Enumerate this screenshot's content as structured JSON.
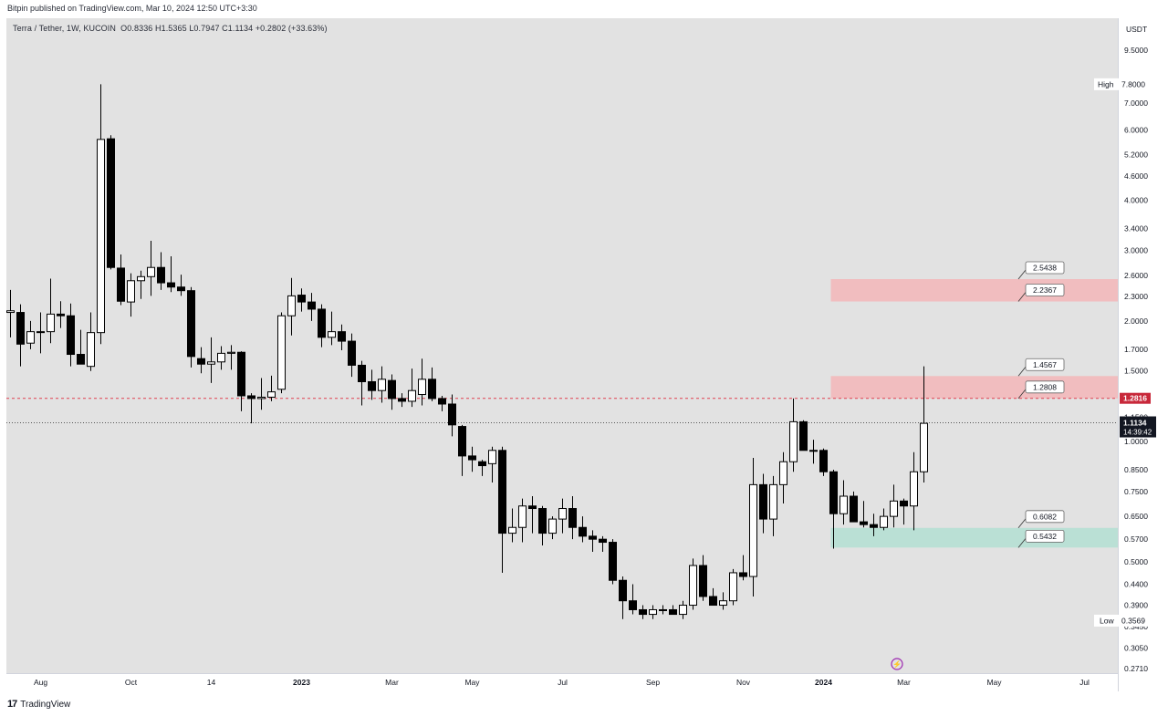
{
  "header": {
    "published": "Bitpin published on TradingView.com, Mar 10, 2024 12:50 UTC+3:30",
    "symbol": "Terra / Tether, 1W, KUCOIN",
    "ohlc": "O0.8336  H1.5365  L0.7947  C1.1134  +0.2802 (+33.63%)"
  },
  "footer": {
    "brand": "TradingView"
  },
  "chart_data": {
    "type": "candlestick",
    "currency": "USDT",
    "y_scale": "log",
    "ylim": [
      0.25,
      11
    ],
    "price_ticks": [
      "9.5000",
      "7.0000",
      "6.0000",
      "5.2000",
      "4.6000",
      "4.0000",
      "3.4000",
      "3.0000",
      "2.6000",
      "2.3000",
      "2.0000",
      "1.7000",
      "1.5000",
      "1.1500",
      "1.0000",
      "0.8500",
      "0.7500",
      "0.6500",
      "0.5700",
      "0.5000",
      "0.4400",
      "0.3900",
      "0.3450",
      "0.3050",
      "0.2710"
    ],
    "time_labels": [
      {
        "label": "Aug",
        "week": 3
      },
      {
        "label": "Oct",
        "week": 12
      },
      {
        "label": "14",
        "week": 20
      },
      {
        "label": "2023",
        "week": 29
      },
      {
        "label": "Mar",
        "week": 38
      },
      {
        "label": "May",
        "week": 46
      },
      {
        "label": "Jul",
        "week": 55
      },
      {
        "label": "Sep",
        "week": 64
      },
      {
        "label": "Nov",
        "week": 73
      },
      {
        "label": "2024",
        "week": 81
      },
      {
        "label": "Mar",
        "week": 89
      },
      {
        "label": "May",
        "week": 98
      },
      {
        "label": "Jul",
        "week": 107
      }
    ],
    "high": {
      "label": "High",
      "value": "7.8000"
    },
    "low": {
      "label": "Low",
      "value": "0.3569"
    },
    "current_price": {
      "value": "1.1134",
      "countdown": "14:39:42"
    },
    "marked_level": {
      "value": "1.2816"
    },
    "zones": [
      {
        "type": "resistance",
        "color": "#f3b6b9",
        "from_week": 82,
        "top": 2.5438,
        "bottom": 2.2367,
        "labels": [
          "2.5438",
          "2.2367"
        ]
      },
      {
        "type": "resistance",
        "color": "#f3b6b9",
        "from_week": 82,
        "top": 1.4567,
        "bottom": 1.2808,
        "labels": [
          "1.4567",
          "1.2808"
        ]
      },
      {
        "type": "support",
        "color": "#b3dfd2",
        "from_week": 82,
        "top": 0.6082,
        "bottom": 0.5432,
        "labels": [
          "0.6082",
          "0.5432"
        ]
      }
    ],
    "candles": [
      [
        0,
        2.1,
        2.39,
        1.82,
        2.12
      ],
      [
        1,
        2.1,
        2.2,
        1.54,
        1.75
      ],
      [
        2,
        1.76,
        2.0,
        1.7,
        1.88
      ],
      [
        3,
        1.88,
        2.1,
        1.66,
        1.88
      ],
      [
        4,
        1.88,
        2.55,
        1.76,
        2.08
      ],
      [
        5,
        2.08,
        2.24,
        1.92,
        2.06
      ],
      [
        6,
        2.06,
        2.21,
        1.54,
        1.65
      ],
      [
        7,
        1.65,
        1.9,
        1.56,
        1.56
      ],
      [
        8,
        1.54,
        2.1,
        1.5,
        1.87
      ],
      [
        9,
        1.87,
        7.8,
        1.75,
        5.68
      ],
      [
        10,
        5.7,
        5.82,
        2.69,
        2.72
      ],
      [
        11,
        2.71,
        2.93,
        2.19,
        2.24
      ],
      [
        12,
        2.23,
        2.63,
        2.05,
        2.52
      ],
      [
        13,
        2.52,
        2.67,
        2.27,
        2.58
      ],
      [
        14,
        2.58,
        3.17,
        2.31,
        2.72
      ],
      [
        15,
        2.72,
        2.97,
        2.39,
        2.49
      ],
      [
        16,
        2.49,
        2.9,
        2.36,
        2.43
      ],
      [
        17,
        2.43,
        2.61,
        2.31,
        2.38
      ],
      [
        18,
        2.38,
        2.43,
        1.53,
        1.63
      ],
      [
        19,
        1.61,
        1.72,
        1.48,
        1.56
      ],
      [
        20,
        1.56,
        1.82,
        1.4,
        1.58
      ],
      [
        21,
        1.58,
        1.73,
        1.51,
        1.66
      ],
      [
        22,
        1.66,
        1.74,
        1.51,
        1.67
      ],
      [
        23,
        1.67,
        1.68,
        1.19,
        1.3
      ],
      [
        24,
        1.3,
        1.32,
        1.11,
        1.28
      ],
      [
        25,
        1.28,
        1.44,
        1.2,
        1.29
      ],
      [
        26,
        1.29,
        1.46,
        1.26,
        1.33
      ],
      [
        27,
        1.35,
        2.1,
        1.32,
        2.06
      ],
      [
        28,
        2.06,
        2.56,
        1.84,
        2.31
      ],
      [
        29,
        2.32,
        2.41,
        2.11,
        2.23
      ],
      [
        30,
        2.23,
        2.35,
        2.0,
        2.14
      ],
      [
        31,
        2.14,
        2.2,
        1.72,
        1.82
      ],
      [
        32,
        1.82,
        2.11,
        1.74,
        1.88
      ],
      [
        33,
        1.88,
        1.96,
        1.69,
        1.78
      ],
      [
        34,
        1.78,
        1.86,
        1.45,
        1.55
      ],
      [
        35,
        1.55,
        1.59,
        1.23,
        1.41
      ],
      [
        36,
        1.41,
        1.51,
        1.27,
        1.34
      ],
      [
        37,
        1.34,
        1.54,
        1.25,
        1.43
      ],
      [
        38,
        1.42,
        1.47,
        1.2,
        1.28
      ],
      [
        39,
        1.28,
        1.32,
        1.22,
        1.26
      ],
      [
        40,
        1.26,
        1.52,
        1.22,
        1.34
      ],
      [
        41,
        1.31,
        1.61,
        1.23,
        1.43
      ],
      [
        42,
        1.43,
        1.53,
        1.26,
        1.28
      ],
      [
        43,
        1.28,
        1.3,
        1.19,
        1.24
      ],
      [
        44,
        1.24,
        1.31,
        1.03,
        1.1
      ],
      [
        45,
        1.09,
        1.1,
        0.82,
        0.92
      ],
      [
        46,
        0.92,
        0.97,
        0.84,
        0.9
      ],
      [
        47,
        0.89,
        0.9,
        0.82,
        0.87
      ],
      [
        48,
        0.88,
        0.97,
        0.79,
        0.95
      ],
      [
        49,
        0.95,
        0.97,
        0.47,
        0.59
      ],
      [
        50,
        0.59,
        0.68,
        0.56,
        0.61
      ],
      [
        51,
        0.61,
        0.72,
        0.56,
        0.69
      ],
      [
        52,
        0.69,
        0.73,
        0.59,
        0.68
      ],
      [
        53,
        0.68,
        0.69,
        0.55,
        0.59
      ],
      [
        54,
        0.59,
        0.65,
        0.57,
        0.64
      ],
      [
        55,
        0.64,
        0.72,
        0.59,
        0.68
      ],
      [
        56,
        0.68,
        0.73,
        0.57,
        0.61
      ],
      [
        57,
        0.61,
        0.65,
        0.56,
        0.58
      ],
      [
        58,
        0.58,
        0.6,
        0.53,
        0.57
      ],
      [
        59,
        0.57,
        0.58,
        0.53,
        0.56
      ],
      [
        60,
        0.56,
        0.57,
        0.44,
        0.45
      ],
      [
        61,
        0.45,
        0.46,
        0.36,
        0.4
      ],
      [
        62,
        0.4,
        0.44,
        0.37,
        0.38
      ],
      [
        63,
        0.38,
        0.39,
        0.36,
        0.37
      ],
      [
        64,
        0.37,
        0.39,
        0.36,
        0.38
      ],
      [
        65,
        0.38,
        0.39,
        0.37,
        0.38
      ],
      [
        66,
        0.38,
        0.39,
        0.37,
        0.37
      ],
      [
        67,
        0.37,
        0.4,
        0.36,
        0.39
      ],
      [
        68,
        0.39,
        0.51,
        0.38,
        0.49
      ],
      [
        69,
        0.49,
        0.52,
        0.4,
        0.41
      ],
      [
        70,
        0.41,
        0.43,
        0.39,
        0.39
      ],
      [
        71,
        0.39,
        0.42,
        0.38,
        0.4
      ],
      [
        72,
        0.4,
        0.48,
        0.39,
        0.47
      ],
      [
        73,
        0.47,
        0.52,
        0.45,
        0.46
      ],
      [
        74,
        0.46,
        0.91,
        0.41,
        0.78
      ],
      [
        75,
        0.78,
        0.83,
        0.59,
        0.64
      ],
      [
        76,
        0.64,
        0.82,
        0.58,
        0.78
      ],
      [
        77,
        0.78,
        0.94,
        0.7,
        0.89
      ],
      [
        78,
        0.89,
        1.28,
        0.84,
        1.12
      ],
      [
        79,
        1.12,
        1.13,
        0.97,
        0.95
      ],
      [
        80,
        0.95,
        1.01,
        0.88,
        0.95
      ],
      [
        81,
        0.95,
        0.96,
        0.82,
        0.84
      ],
      [
        82,
        0.84,
        0.85,
        0.54,
        0.66
      ],
      [
        83,
        0.66,
        0.8,
        0.62,
        0.73
      ],
      [
        84,
        0.73,
        0.75,
        0.63,
        0.63
      ],
      [
        85,
        0.63,
        0.71,
        0.61,
        0.62
      ],
      [
        86,
        0.62,
        0.66,
        0.58,
        0.61
      ],
      [
        87,
        0.61,
        0.68,
        0.6,
        0.65
      ],
      [
        88,
        0.65,
        0.78,
        0.61,
        0.71
      ],
      [
        89,
        0.71,
        0.72,
        0.62,
        0.69
      ],
      [
        90,
        0.69,
        0.94,
        0.6,
        0.84
      ],
      [
        91,
        0.84,
        1.54,
        0.79,
        1.11
      ]
    ]
  }
}
